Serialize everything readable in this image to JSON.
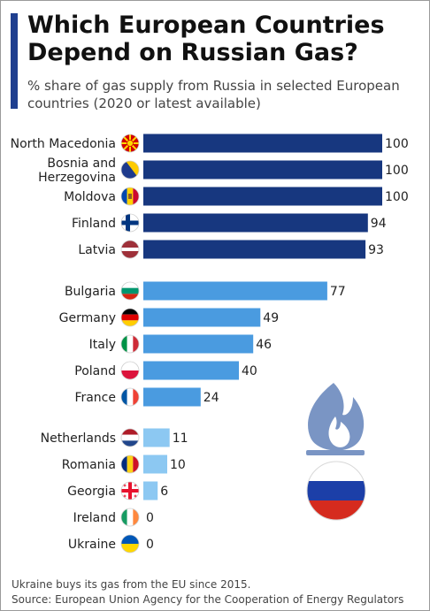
{
  "title": "Which European Countries Depend on Russian Gas?",
  "subtitle": "% share of gas supply from Russia in selected European countries (2020 or latest available)",
  "footnote": "Ukraine buys its gas from the EU since 2015.",
  "source": "Source: European Union Agency for the Cooperation of Energy Regulators",
  "colors": {
    "accent": "#1f3f8f",
    "tier_high": "#17377f",
    "tier_mid": "#4a9be0",
    "tier_low": "#8cc8f2",
    "gas_flame": "#7a95c4",
    "text": "#222222"
  },
  "icons": [
    "gas-flame-icon",
    "russia-flag-icon"
  ],
  "chart_data": {
    "type": "bar",
    "orientation": "horizontal",
    "xlim": [
      0,
      100
    ],
    "categories": [
      "North Macedonia",
      "Bosnia and Herzegovina",
      "Moldova",
      "Finland",
      "Latvia",
      "Bulgaria",
      "Germany",
      "Italy",
      "Poland",
      "France",
      "Netherlands",
      "Romania",
      "Georgia",
      "Ireland",
      "Ukraine"
    ],
    "values": [
      100,
      100,
      100,
      94,
      93,
      77,
      49,
      46,
      40,
      24,
      11,
      10,
      6,
      0,
      0
    ],
    "value_labels": [
      "100",
      "100",
      "100",
      "94",
      "93",
      "77",
      "49",
      "46",
      "40",
      "24",
      "11",
      "10",
      "6",
      "0",
      "0"
    ],
    "groups": [
      {
        "color": "tier_high",
        "members": [
          0,
          1,
          2,
          3,
          4
        ]
      },
      {
        "color": "tier_mid",
        "members": [
          5,
          6,
          7,
          8,
          9
        ]
      },
      {
        "color": "tier_low",
        "members": [
          10,
          11,
          12,
          13,
          14
        ]
      }
    ],
    "flags": [
      "north-macedonia-flag-icon",
      "bosnia-flag-icon",
      "moldova-flag-icon",
      "finland-flag-icon",
      "latvia-flag-icon",
      "bulgaria-flag-icon",
      "germany-flag-icon",
      "italy-flag-icon",
      "poland-flag-icon",
      "france-flag-icon",
      "netherlands-flag-icon",
      "romania-flag-icon",
      "georgia-flag-icon",
      "ireland-flag-icon",
      "ukraine-flag-icon"
    ],
    "grid": false,
    "legend": "none"
  }
}
